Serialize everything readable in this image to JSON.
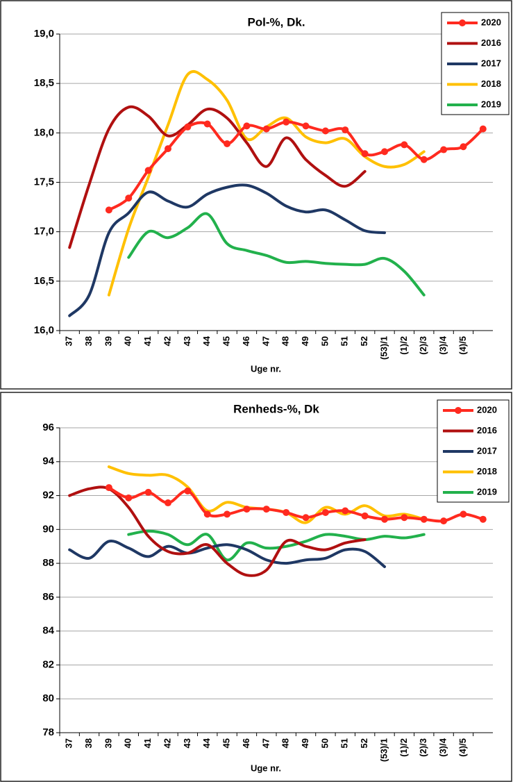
{
  "chart_data": [
    {
      "type": "line",
      "title": "Pol-%, Dk.",
      "x_label": "Uge nr.",
      "categories": [
        "37",
        "38",
        "39",
        "40",
        "41",
        "42",
        "43",
        "44",
        "45",
        "46",
        "47",
        "48",
        "49",
        "50",
        "51",
        "52",
        "(53)/1",
        "(1)/2",
        "(2)/3",
        "(3)/4",
        "(4)/5",
        null
      ],
      "ylim": [
        16,
        19
      ],
      "yticks": [
        {
          "value": 16,
          "label": "16,0"
        },
        {
          "value": 16.5,
          "label": "16,5"
        },
        {
          "value": 17,
          "label": "17,0"
        },
        {
          "value": 17.5,
          "label": "17,5"
        },
        {
          "value": 18,
          "label": "18,0"
        },
        {
          "value": 18.5,
          "label": "18,5"
        },
        {
          "value": 19,
          "label": "19,0"
        }
      ],
      "grid": true,
      "legend": "upper right",
      "series": [
        {
          "name": "2020",
          "color": "#ff2a1f",
          "markers": true,
          "values": [
            null,
            null,
            17.22,
            17.34,
            17.62,
            17.84,
            18.06,
            18.09,
            17.89,
            18.07,
            18.04,
            18.11,
            18.07,
            18.02,
            18.03,
            17.79,
            17.81,
            17.88,
            17.73,
            17.83,
            17.86,
            18.04
          ]
        },
        {
          "name": "2016",
          "color": "#b01010",
          "values": [
            16.84,
            17.48,
            18.04,
            18.26,
            18.17,
            17.97,
            18.08,
            18.24,
            18.15,
            17.9,
            17.66,
            17.95,
            17.73,
            17.57,
            17.46,
            17.61,
            null,
            null,
            null,
            null,
            null,
            null
          ]
        },
        {
          "name": "2017",
          "color": "#1f3864",
          "values": [
            16.15,
            16.36,
            16.99,
            17.19,
            17.4,
            17.31,
            17.25,
            17.38,
            17.45,
            17.47,
            17.39,
            17.26,
            17.2,
            17.22,
            17.12,
            17.01,
            16.99,
            null,
            null,
            null,
            null,
            null
          ]
        },
        {
          "name": "2018",
          "color": "#ffc000",
          "values": [
            null,
            null,
            16.36,
            17.03,
            17.55,
            18.08,
            18.59,
            18.54,
            18.33,
            17.94,
            18.06,
            18.15,
            17.96,
            17.9,
            17.94,
            17.76,
            17.66,
            17.68,
            17.81,
            null,
            null,
            null
          ]
        },
        {
          "name": "2019",
          "color": "#22b14c",
          "values": [
            null,
            null,
            null,
            16.74,
            17.0,
            16.94,
            17.04,
            17.18,
            16.88,
            16.81,
            16.76,
            16.69,
            16.7,
            16.68,
            16.67,
            16.67,
            16.73,
            16.6,
            16.36,
            null,
            null,
            null
          ]
        }
      ]
    },
    {
      "type": "line",
      "title": "Renheds-%, Dk",
      "x_label": "Uge nr.",
      "categories": [
        "37",
        "38",
        "39",
        "40",
        "41",
        "42",
        "43",
        "44",
        "45",
        "46",
        "47",
        "48",
        "49",
        "50",
        "51",
        "52",
        "(53)/1",
        "(1)/2",
        "(2)/3",
        "(3)/4",
        "(4)/5",
        null
      ],
      "ylim": [
        78,
        96
      ],
      "yticks": [
        78,
        80,
        82,
        84,
        86,
        88,
        90,
        92,
        94,
        96
      ],
      "grid": true,
      "legend": "upper right",
      "series": [
        {
          "name": "2020",
          "color": "#ff2a1f",
          "markers": true,
          "values": [
            null,
            null,
            92.47,
            91.86,
            92.19,
            91.57,
            92.27,
            90.9,
            90.9,
            91.2,
            91.2,
            91.0,
            90.7,
            91.0,
            91.1,
            90.8,
            90.6,
            90.7,
            90.6,
            90.5,
            90.9,
            90.6
          ]
        },
        {
          "name": "2016",
          "color": "#b01010",
          "values": [
            92.0,
            92.4,
            92.4,
            91.3,
            89.6,
            88.7,
            88.6,
            89.1,
            88.0,
            87.3,
            87.6,
            89.3,
            89.0,
            88.8,
            89.2,
            89.4,
            null,
            null,
            null,
            null,
            null,
            null
          ]
        },
        {
          "name": "2017",
          "color": "#1f3864",
          "values": [
            88.8,
            88.3,
            89.3,
            88.9,
            88.4,
            89.0,
            88.6,
            88.9,
            89.1,
            88.8,
            88.2,
            88.0,
            88.2,
            88.3,
            88.8,
            88.7,
            87.8,
            null,
            null,
            null,
            null,
            null
          ]
        },
        {
          "name": "2018",
          "color": "#ffc000",
          "values": [
            null,
            null,
            93.7,
            93.3,
            93.2,
            93.2,
            92.5,
            91.1,
            91.6,
            91.3,
            91.2,
            91.0,
            90.4,
            91.3,
            90.9,
            91.4,
            90.8,
            90.9,
            90.6,
            null,
            null,
            null
          ]
        },
        {
          "name": "2019",
          "color": "#22b14c",
          "values": [
            null,
            null,
            null,
            89.7,
            89.9,
            89.7,
            89.1,
            89.7,
            88.2,
            89.2,
            88.9,
            89.0,
            89.3,
            89.7,
            89.6,
            89.4,
            89.6,
            89.5,
            89.7,
            null,
            null,
            null
          ]
        }
      ]
    }
  ]
}
